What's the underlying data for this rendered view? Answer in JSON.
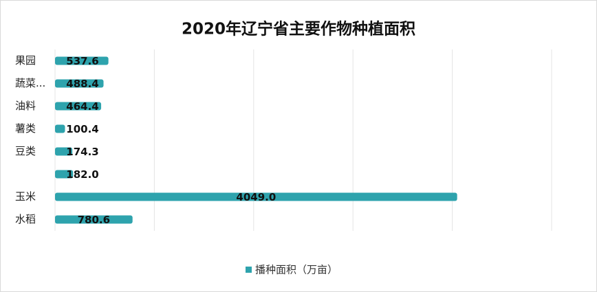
{
  "chart_data": {
    "type": "hbar",
    "title": "2020年辽宁省主要作物种植面积",
    "categories": [
      "果园",
      "蔬菜...",
      "油料",
      "薯类",
      "豆类",
      null,
      "玉米",
      "水稻"
    ],
    "series": [
      {
        "name": "播种面积（万亩）",
        "color": "#2ea3ad",
        "values": [
          537.6,
          488.4,
          464.4,
          100.4,
          174.3,
          182.0,
          4049.0,
          780.6
        ],
        "value_labels": [
          "537.6",
          "488.4",
          "464.4",
          "100.4",
          "174.3",
          "182.0",
          "4049.0",
          "780.6"
        ]
      }
    ],
    "xlim": [
      0,
      5000
    ],
    "xticks": [
      0,
      1000,
      2000,
      3000,
      4000,
      5000
    ],
    "grid": true,
    "legend": "bottom"
  }
}
